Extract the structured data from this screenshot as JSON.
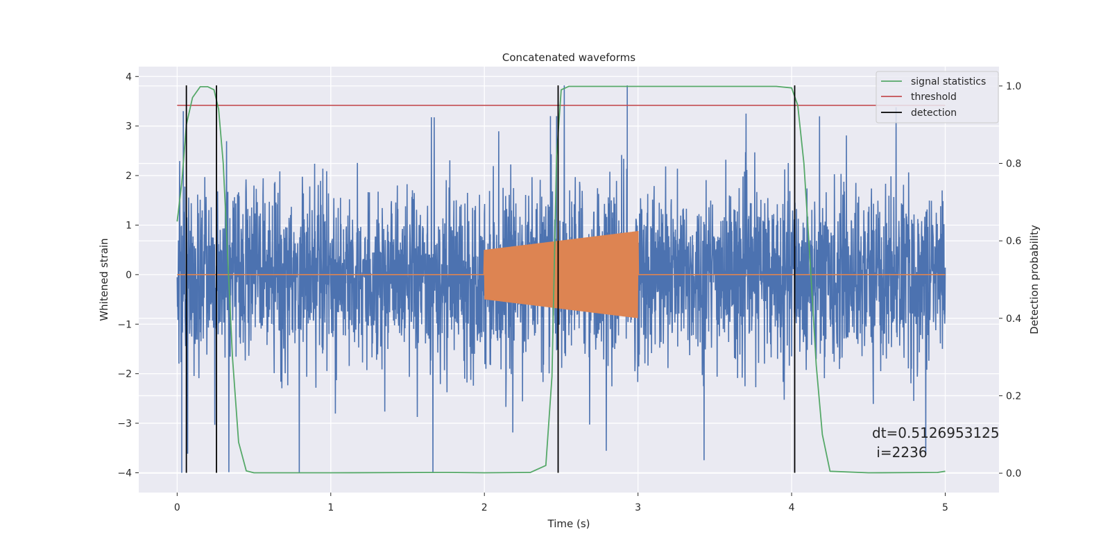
{
  "chart_data": {
    "type": "line",
    "title": "Concatenated waveforms",
    "xlabel": "Time (s)",
    "ylabel": "Whitened strain",
    "y2label": "Detection probability",
    "xlim": [
      -0.25,
      5.35
    ],
    "ylim": [
      -4.4,
      4.2
    ],
    "y2lim": [
      -0.05,
      1.05
    ],
    "xticks": [
      "0",
      "1",
      "2",
      "3",
      "4",
      "5"
    ],
    "yticks": [
      "−4",
      "−3",
      "−2",
      "−1",
      "0",
      "1",
      "2",
      "3",
      "4"
    ],
    "y2ticks": [
      "0.0",
      "0.2",
      "0.4",
      "0.6",
      "0.8",
      "1.0"
    ],
    "grid": true,
    "legend_position": "top-right",
    "series": [
      {
        "name": "",
        "role": "whitened-strain-noise",
        "color": "#4c72b0",
        "x_range": [
          0,
          5
        ],
        "amplitude_typical": 1.3,
        "y_min": -4.0,
        "y_max": 3.82
      },
      {
        "name": "",
        "role": "injected-waveform",
        "color": "#dd8452",
        "x_range": [
          0,
          5
        ],
        "chirp_x_range": [
          2.0,
          3.0
        ],
        "chirp_amplitude": [
          0.5,
          0.88
        ]
      },
      {
        "name": "signal statistics",
        "color": "#55a868",
        "axis": "right",
        "x": [
          0.0,
          0.03,
          0.06,
          0.1,
          0.15,
          0.2,
          0.24,
          0.27,
          0.3,
          0.33,
          0.36,
          0.4,
          0.45,
          0.5,
          1.0,
          1.76,
          2.0,
          2.3,
          2.4,
          2.44,
          2.47,
          2.5,
          2.55,
          3.0,
          3.9,
          4.0,
          4.04,
          4.08,
          4.12,
          4.16,
          4.2,
          4.25,
          4.5,
          4.95,
          5.0
        ],
        "y": [
          0.65,
          0.75,
          0.9,
          0.97,
          0.998,
          0.998,
          0.99,
          0.94,
          0.8,
          0.55,
          0.3,
          0.08,
          0.006,
          0.001,
          0.001,
          0.002,
          0.001,
          0.002,
          0.02,
          0.25,
          0.82,
          0.99,
          0.999,
          0.999,
          0.999,
          0.995,
          0.95,
          0.8,
          0.55,
          0.28,
          0.1,
          0.005,
          0.001,
          0.002,
          0.005
        ]
      },
      {
        "name": "threshold",
        "color": "#c44e52",
        "axis": "right",
        "x": [
          0,
          5
        ],
        "y": [
          0.95,
          0.95
        ]
      },
      {
        "name": "detection",
        "color": "#000000",
        "type": "vlines",
        "x": [
          0.06,
          0.256,
          2.48,
          4.02
        ],
        "y_range": [
          -4.0,
          3.82
        ]
      }
    ],
    "annotation": {
      "line1": "dt=0.5126953125",
      "line2": " i=2236"
    }
  }
}
